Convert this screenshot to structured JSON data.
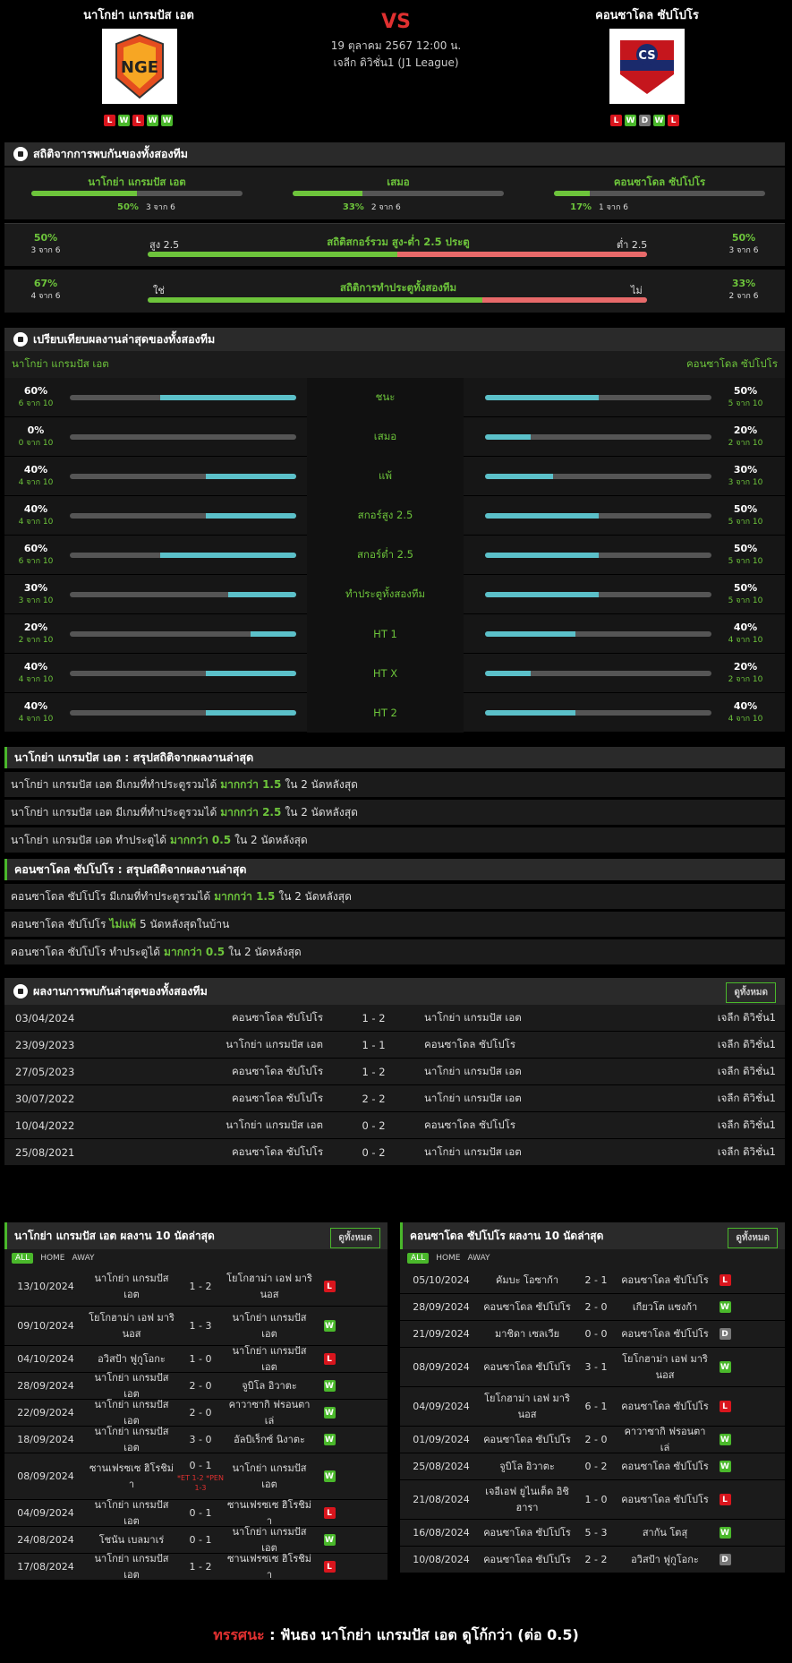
{
  "header": {
    "home": "นาโกย่า แกรมปัส เอต",
    "away": "คอนซาโดล ซัปโปโร",
    "vs": "VS",
    "date": "19 ตุลาคม 2567 12:00 น.",
    "league": "เจลีก ดิวิชั่น1 (J1 League)",
    "home_form": [
      "L",
      "W",
      "L",
      "W",
      "W"
    ],
    "away_form": [
      "L",
      "W",
      "D",
      "W",
      "L"
    ],
    "home_logo": "NGE",
    "away_logo": "CS"
  },
  "h2h_stats": {
    "title": "สถิติจากการพบกันของทั้งสองทีม",
    "cols": [
      {
        "label": "นาโกย่า แกรมปัส เอต",
        "pct": "50%",
        "of": "3 จาก 6",
        "v": 0.5
      },
      {
        "label": "เสมอ",
        "pct": "33%",
        "of": "2 จาก 6",
        "v": 0.33
      },
      {
        "label": "คอนซาโดล ซัปโปโร",
        "pct": "17%",
        "of": "1 จาก 6",
        "v": 0.17
      }
    ],
    "ou": {
      "left_pct": "50%",
      "left_of": "3 จาก 6",
      "high": "สูง 2.5",
      "title": "สถิติสกอร์รวม สูง-ต่ำ 2.5 ประตู",
      "low": "ต่ำ 2.5",
      "right_pct": "50%",
      "right_of": "3 จาก 6",
      "v": 0.5
    },
    "btts": {
      "left_pct": "67%",
      "left_of": "4 จาก 6",
      "yes": "ใช่",
      "title": "สถิติการทำประตูทั้งสองทีม",
      "no": "ไม่",
      "right_pct": "33%",
      "right_of": "2 จาก 6",
      "v": 0.67
    }
  },
  "compare": {
    "title": "เปรียบเทียบผลงานล่าสุดของทั้งสองทีม",
    "home": "นาโกย่า แกรมปัส เอต",
    "away": "คอนซาโดล ซัปโปโร",
    "rows": [
      {
        "label": "ชนะ",
        "hp": "60%",
        "ho": "6 จาก 10",
        "hv": 0.6,
        "ap": "50%",
        "ao": "5 จาก 10",
        "av": 0.5
      },
      {
        "label": "เสมอ",
        "hp": "0%",
        "ho": "0 จาก 10",
        "hv": 0,
        "ap": "20%",
        "ao": "2 จาก 10",
        "av": 0.2
      },
      {
        "label": "แพ้",
        "hp": "40%",
        "ho": "4 จาก 10",
        "hv": 0.4,
        "ap": "30%",
        "ao": "3 จาก 10",
        "av": 0.3
      },
      {
        "label": "สกอร์สูง 2.5",
        "hp": "40%",
        "ho": "4 จาก 10",
        "hv": 0.4,
        "ap": "50%",
        "ao": "5 จาก 10",
        "av": 0.5
      },
      {
        "label": "สกอร์ต่ำ 2.5",
        "hp": "60%",
        "ho": "6 จาก 10",
        "hv": 0.6,
        "ap": "50%",
        "ao": "5 จาก 10",
        "av": 0.5
      },
      {
        "label": "ทำประตูทั้งสองทีม",
        "hp": "30%",
        "ho": "3 จาก 10",
        "hv": 0.3,
        "ap": "50%",
        "ao": "5 จาก 10",
        "av": 0.5
      },
      {
        "label": "HT 1",
        "hp": "20%",
        "ho": "2 จาก 10",
        "hv": 0.2,
        "ap": "40%",
        "ao": "4 จาก 10",
        "av": 0.4
      },
      {
        "label": "HT X",
        "hp": "40%",
        "ho": "4 จาก 10",
        "hv": 0.4,
        "ap": "20%",
        "ao": "2 จาก 10",
        "av": 0.2
      },
      {
        "label": "HT 2",
        "hp": "40%",
        "ho": "4 จาก 10",
        "hv": 0.4,
        "ap": "40%",
        "ao": "4 จาก 10",
        "av": 0.4
      }
    ]
  },
  "home_summary": {
    "title": "นาโกย่า แกรมปัส เอต : สรุปสถิติจากผลงานล่าสุด",
    "rows": [
      [
        "นาโกย่า แกรมปัส เอต  มีเกมที่ทำประตูรวมได้ ",
        "มากกว่า  1.5",
        " ใน 2 นัดหลังสุด"
      ],
      [
        "นาโกย่า แกรมปัส เอต  มีเกมที่ทำประตูรวมได้ ",
        "มากกว่า  2.5",
        " ใน 2 นัดหลังสุด"
      ],
      [
        "นาโกย่า แกรมปัส เอต  ทำประตูได้ ",
        "มากกว่า  0.5",
        " ใน 2 นัดหลังสุด"
      ]
    ]
  },
  "away_summary": {
    "title": "คอนซาโดล ซัปโปโร : สรุปสถิติจากผลงานล่าสุด",
    "rows": [
      [
        "คอนซาโดล ซัปโปโร  มีเกมที่ทำประตูรวมได้ ",
        "มากกว่า  1.5",
        " ใน 2 นัดหลังสุด"
      ],
      [
        "คอนซาโดล ซัปโปโร ",
        "ไม่แพ้",
        " 5  นัดหลังสุดในบ้าน"
      ],
      [
        "คอนซาโดล ซัปโปโร  ทำประตูได้ ",
        "มากกว่า  0.5",
        " ใน 2 นัดหลังสุด"
      ]
    ]
  },
  "h2h_results": {
    "title": "ผลงานการพบกันล่าสุดของทั้งสองทีม",
    "btn": "ดูทั้งหมด",
    "rows": [
      [
        "03/04/2024",
        "คอนซาโดล ซัปโปโร",
        "1 - 2",
        "นาโกย่า แกรมปัส เอต",
        "เจลีก ดิวิชั่น1"
      ],
      [
        "23/09/2023",
        "นาโกย่า แกรมปัส เอต",
        "1 - 1",
        "คอนซาโดล ซัปโปโร",
        "เจลีก ดิวิชั่น1"
      ],
      [
        "27/05/2023",
        "คอนซาโดล ซัปโปโร",
        "1 - 2",
        "นาโกย่า แกรมปัส เอต",
        "เจลีก ดิวิชั่น1"
      ],
      [
        "30/07/2022",
        "คอนซาโดล ซัปโปโร",
        "2 - 2",
        "นาโกย่า แกรมปัส เอต",
        "เจลีก ดิวิชั่น1"
      ],
      [
        "10/04/2022",
        "นาโกย่า แกรมปัส เอต",
        "0 - 2",
        "คอนซาโดล ซัปโปโร",
        "เจลีก ดิวิชั่น1"
      ],
      [
        "25/08/2021",
        "คอนซาโดล ซัปโปโร",
        "0 - 2",
        "นาโกย่า แกรมปัส เอต",
        "เจลีก ดิวิชั่น1"
      ]
    ]
  },
  "home_last": {
    "title": "นาโกย่า แกรมปัส เอต ผลงาน 10 นัดล่าสุด",
    "btn": "ดูทั้งหมด",
    "tabs": [
      "ALL",
      "HOME",
      "AWAY"
    ],
    "rows": [
      {
        "d": "13/10/2024",
        "t1": "นาโกย่า แกรมปัส เอต",
        "s": "1 - 2",
        "t2": "โยโกฮาม่า เอฟ มารินอส",
        "r": "L",
        "h": 40
      },
      {
        "d": "09/10/2024",
        "t1": "โยโกฮาม่า เอฟ มารินอส",
        "s": "1 - 3",
        "t2": "นาโกย่า แกรมปัส เอต",
        "r": "W",
        "h": 40
      },
      {
        "d": "04/10/2024",
        "t1": "อวิสป้า ฟูกูโอกะ",
        "s": "1 - 0",
        "t2": "นาโกย่า แกรมปัส เอต",
        "r": "L",
        "h": 26
      },
      {
        "d": "28/09/2024",
        "t1": "นาโกย่า แกรมปัส เอต",
        "s": "2 - 0",
        "t2": "จูบิโล อิวาตะ",
        "r": "W",
        "h": 26
      },
      {
        "d": "22/09/2024",
        "t1": "นาโกย่า แกรมปัส เอต",
        "s": "2 - 0",
        "t2": "คาวาซากิ ฟรอนตาเล่",
        "r": "W",
        "h": 26
      },
      {
        "d": "18/09/2024",
        "t1": "นาโกย่า แกรมปัส เอต",
        "s": "3 - 0",
        "t2": "อัลบิเร็กซ์ นิงาตะ",
        "r": "W",
        "h": 26
      },
      {
        "d": "08/09/2024",
        "t1": "ซานเฟรซเซ ฮิโรชิม่า",
        "s": "0 - 1",
        "ex": "*ET 1-2 *PEN 1-3",
        "t2": "นาโกย่า แกรมปัส เอต",
        "r": "W",
        "h": 48
      },
      {
        "d": "04/09/2024",
        "t1": "นาโกย่า แกรมปัส เอต",
        "s": "0 - 1",
        "t2": "ซานเฟรซเซ ฮิโรชิม่า",
        "r": "L",
        "h": 26
      },
      {
        "d": "24/08/2024",
        "t1": "โชนัน เบลมาเร่",
        "s": "0 - 1",
        "t2": "นาโกย่า แกรมปัส เอต",
        "r": "W",
        "h": 26
      },
      {
        "d": "17/08/2024",
        "t1": "นาโกย่า แกรมปัส เอต",
        "s": "1 - 2",
        "t2": "ซานเฟรซเซ ฮิโรชิม่า",
        "r": "L",
        "h": 26
      }
    ]
  },
  "away_last": {
    "title": "คอนซาโดล ซัปโปโร ผลงาน 10 นัดล่าสุด",
    "btn": "ดูทั้งหมด",
    "tabs": [
      "ALL",
      "HOME",
      "AWAY"
    ],
    "rows": [
      {
        "d": "05/10/2024",
        "t1": "คัมบะ โอซาก้า",
        "s": "2 - 1",
        "t2": "คอนซาโดล ซัปโปโร",
        "r": "L",
        "h": 26
      },
      {
        "d": "28/09/2024",
        "t1": "คอนซาโดล ซัปโปโร",
        "s": "2 - 0",
        "t2": "เกียวโต แซงก้า",
        "r": "W",
        "h": 26
      },
      {
        "d": "21/09/2024",
        "t1": "มาชิดา เซลเวีย",
        "s": "0 - 0",
        "t2": "คอนซาโดล ซัปโปโร",
        "r": "D",
        "h": 26
      },
      {
        "d": "08/09/2024",
        "t1": "คอนซาโดล ซัปโปโร",
        "s": "3 - 1",
        "t2": "โยโกฮาม่า เอฟ มารินอส",
        "r": "W",
        "h": 40
      },
      {
        "d": "04/09/2024",
        "t1": "โยโกฮาม่า เอฟ มารินอส",
        "s": "6 - 1",
        "t2": "คอนซาโดล ซัปโปโร",
        "r": "L",
        "h": 40
      },
      {
        "d": "01/09/2024",
        "t1": "คอนซาโดล ซัปโปโร",
        "s": "2 - 0",
        "t2": "คาวาซากิ ฟรอนตาเล่",
        "r": "W",
        "h": 26
      },
      {
        "d": "25/08/2024",
        "t1": "จูบิโล อิวาตะ",
        "s": "0 - 2",
        "t2": "คอนซาโดล ซัปโปโร",
        "r": "W",
        "h": 26
      },
      {
        "d": "21/08/2024",
        "t1": "เจอีเอฟ ยูไนเต็ด อิชิฮารา",
        "s": "1 - 0",
        "t2": "คอนซาโดล ซัปโปโร",
        "r": "L",
        "h": 40
      },
      {
        "d": "16/08/2024",
        "t1": "คอนซาโดล ซัปโปโร",
        "s": "5 - 3",
        "t2": "สากัน โตสุ",
        "r": "W",
        "h": 26
      },
      {
        "d": "10/08/2024",
        "t1": "คอนซาโดล ซัปโปโร",
        "s": "2 - 2",
        "t2": "อวิสป้า ฟูกูโอกะ",
        "r": "D",
        "h": 26
      }
    ]
  },
  "verdict": {
    "label": "ทรรศนะ",
    "sep": " :  ",
    "text": "ฟันธง นาโกย่า แกรมปัส เอต ดูโก้กว่า (ต่อ 0.5)"
  }
}
